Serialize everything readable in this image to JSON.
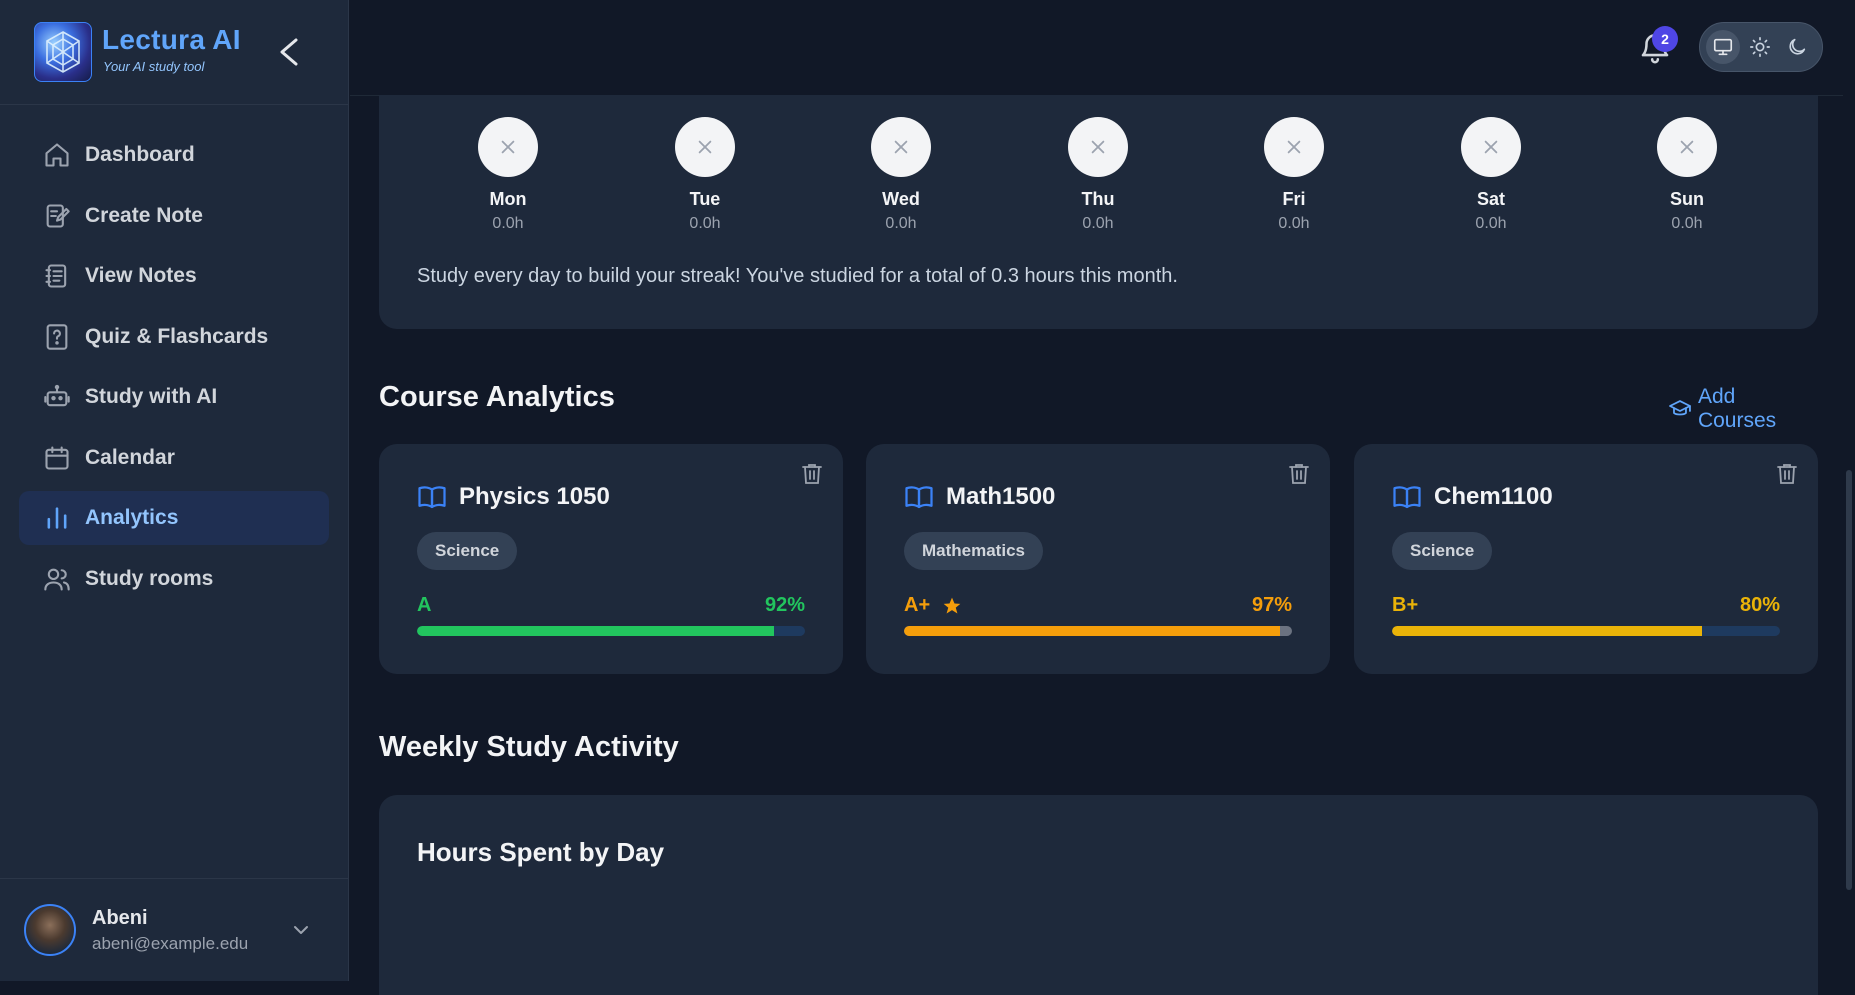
{
  "brand": {
    "name": "Lectura AI",
    "tagline": "Your AI study tool"
  },
  "nav": [
    {
      "label": "Dashboard",
      "icon": "home-icon",
      "active": false
    },
    {
      "label": "Create Note",
      "icon": "edit-note-icon",
      "active": false
    },
    {
      "label": "View Notes",
      "icon": "notebook-icon",
      "active": false
    },
    {
      "label": "Quiz & Flashcards",
      "icon": "question-file-icon",
      "active": false
    },
    {
      "label": "Study with AI",
      "icon": "robot-icon",
      "active": false
    },
    {
      "label": "Calendar",
      "icon": "calendar-icon",
      "active": false
    },
    {
      "label": "Analytics",
      "icon": "bar-chart-icon",
      "active": true
    },
    {
      "label": "Study rooms",
      "icon": "users-icon",
      "active": false
    }
  ],
  "user": {
    "name": "Abeni",
    "email": "abeni@example.edu"
  },
  "notifications": {
    "count": "2"
  },
  "theme": {
    "options": [
      "monitor-icon",
      "sun-icon",
      "moon-icon"
    ],
    "selected": "monitor-icon"
  },
  "streak": {
    "days": [
      {
        "name": "Mon",
        "hours": "0.0h"
      },
      {
        "name": "Tue",
        "hours": "0.0h"
      },
      {
        "name": "Wed",
        "hours": "0.0h"
      },
      {
        "name": "Thu",
        "hours": "0.0h"
      },
      {
        "name": "Fri",
        "hours": "0.0h"
      },
      {
        "name": "Sat",
        "hours": "0.0h"
      },
      {
        "name": "Sun",
        "hours": "0.0h"
      }
    ],
    "message": "Study every day to build your streak! You've studied for a total of 0.3 hours this month."
  },
  "course_analytics": {
    "title": "Course Analytics",
    "add_label": "Add Courses",
    "courses": [
      {
        "name": "Physics 1050",
        "category": "Science",
        "grade": "A",
        "percent": "92%",
        "progress": 0.92,
        "color": "#22c55e",
        "star": false
      },
      {
        "name": "Math1500",
        "category": "Mathematics",
        "grade": "A+",
        "percent": "97%",
        "progress": 0.97,
        "color": "#f59e0b",
        "star": true
      },
      {
        "name": "Chem1100",
        "category": "Science",
        "grade": "B+",
        "percent": "80%",
        "progress": 0.8,
        "color": "#eab308",
        "star": false
      }
    ]
  },
  "weekly": {
    "title": "Weekly Study Activity",
    "chart_title": "Hours Spent by Day"
  },
  "colors": {
    "accent": "#60a5fa",
    "sidebar": "#1e293b",
    "background": "#111827"
  }
}
